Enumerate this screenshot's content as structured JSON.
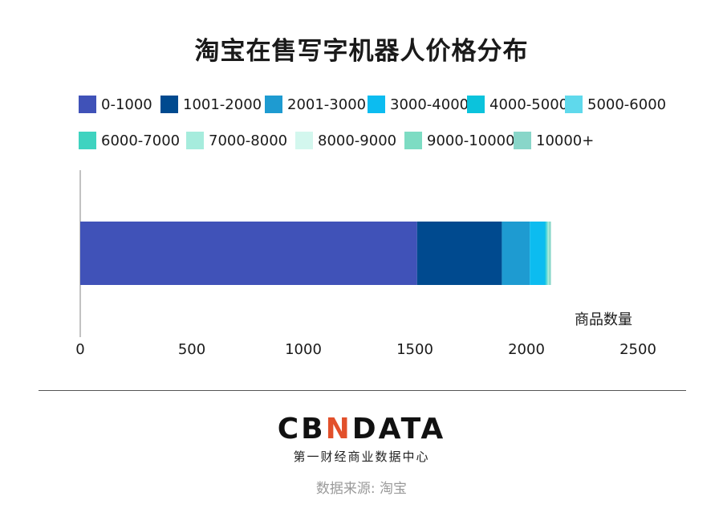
{
  "chart_data": {
    "type": "bar",
    "orientation": "horizontal",
    "stacked": true,
    "title": "淘宝在售写字机器人价格分布",
    "xlabel": "商品数量",
    "xlim": [
      0,
      2500
    ],
    "xticks": [
      0,
      500,
      1000,
      1500,
      2000,
      2500
    ],
    "categories": [
      ""
    ],
    "series": [
      {
        "name": "0-1000",
        "color": "#4052b8",
        "values": [
          1510
        ]
      },
      {
        "name": "1001-2000",
        "color": "#004a8f",
        "values": [
          380
        ]
      },
      {
        "name": "2001-3000",
        "color": "#1e9bd1",
        "values": [
          125
        ]
      },
      {
        "name": "3000-4000",
        "color": "#0cbcf0",
        "values": [
          68
        ]
      },
      {
        "name": "4000-5000",
        "color": "#0bc3dc",
        "values": [
          5
        ]
      },
      {
        "name": "5000-6000",
        "color": "#5fd9ec",
        "values": [
          4
        ]
      },
      {
        "name": "6000-7000",
        "color": "#3fd3c0",
        "values": [
          3
        ]
      },
      {
        "name": "7000-8000",
        "color": "#a6ecdd",
        "values": [
          2
        ]
      },
      {
        "name": "8000-9000",
        "color": "#d3f7ee",
        "values": [
          2
        ]
      },
      {
        "name": "9000-10000",
        "color": "#7ddcc3",
        "values": [
          3
        ]
      },
      {
        "name": "10000+",
        "color": "#89d6c9",
        "values": [
          8
        ]
      }
    ],
    "legend_position": "top",
    "grid": false
  },
  "footer": {
    "logo_parts": [
      "CB",
      "N",
      "DATA"
    ],
    "logo_subtitle": "第一财经商业数据中心",
    "source": "数据来源: 淘宝"
  }
}
